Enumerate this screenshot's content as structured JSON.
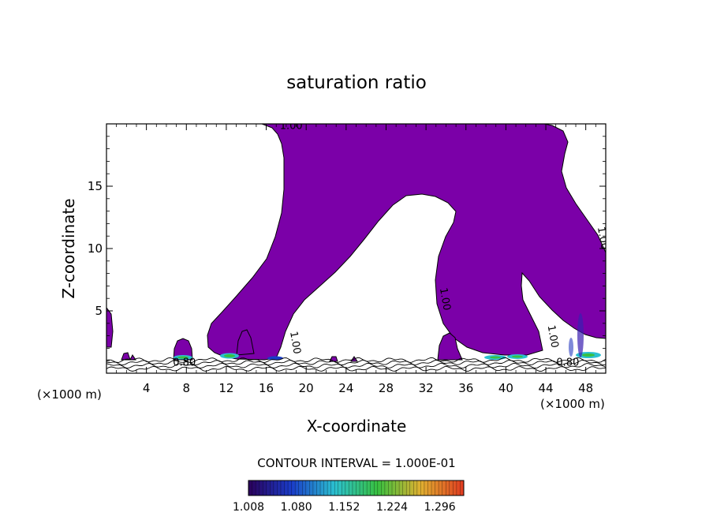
{
  "chart_data": {
    "type": "contour",
    "title": "saturation ratio",
    "xlabel": "X-coordinate",
    "ylabel": "Z-coordinate",
    "x_unit_left": "(×1000 m)",
    "x_unit_right": "(×1000 m)",
    "xlim": [
      0,
      50
    ],
    "ylim": [
      0,
      20
    ],
    "x_ticks": [
      4,
      8,
      12,
      16,
      20,
      24,
      28,
      32,
      36,
      40,
      44,
      48
    ],
    "y_ticks": [
      5,
      10,
      15
    ],
    "contour_labels": [
      {
        "text": "1.00",
        "x": 18.5,
        "z": 19.6,
        "rot": 0
      },
      {
        "text": "1.00",
        "x": 18.6,
        "z": 2.4,
        "rot": 80
      },
      {
        "text": "1.00",
        "x": 33.6,
        "z": 5.9,
        "rot": 80
      },
      {
        "text": "1.00",
        "x": 44.4,
        "z": 2.9,
        "rot": 80
      },
      {
        "text": "1.00",
        "x": 49.4,
        "z": 10.8,
        "rot": 80
      },
      {
        "text": "0.80",
        "x": 7.8,
        "z": 0.6,
        "rot": 0
      },
      {
        "text": "0.80",
        "x": 46.2,
        "z": 0.6,
        "rot": 0
      }
    ],
    "contour_interval_label": "CONTOUR INTERVAL = 1.000E-01",
    "colorbar": {
      "min": 1.008,
      "max": 1.332,
      "tick_labels": [
        "1.008",
        "1.080",
        "1.152",
        "1.224",
        "1.296"
      ],
      "colors": [
        "#2a005a",
        "#1a3cc8",
        "#2bc0d0",
        "#38c040",
        "#e0b030",
        "#e03a20"
      ]
    },
    "fill_color": "#7b00a8"
  }
}
